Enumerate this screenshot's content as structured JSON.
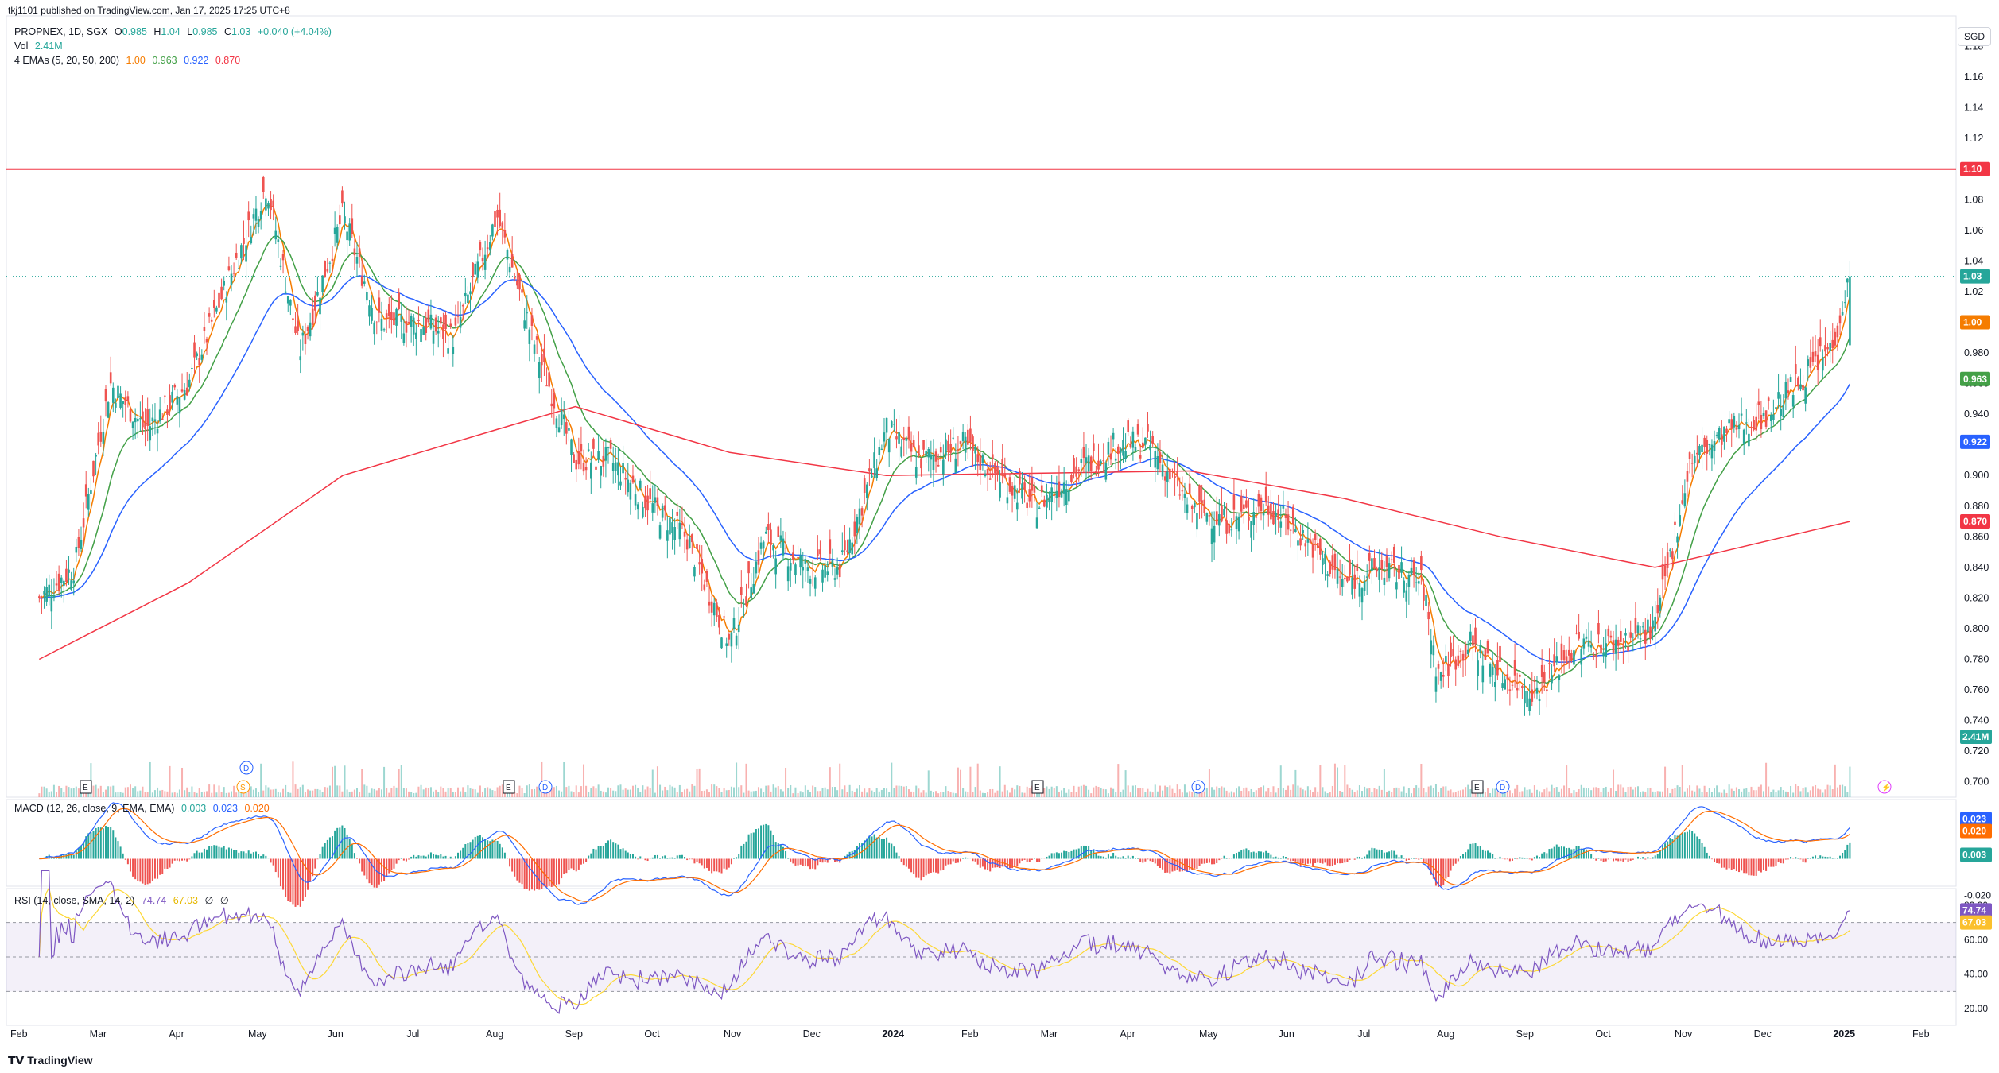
{
  "header": {
    "publisher": "tkj1101 published on TradingView.com, Jan 17, 2025 17:25 UTC+8"
  },
  "legend": {
    "symbol_line": "PROPNEX, 1D, SGX",
    "open_label": "O",
    "open": "0.985",
    "high_label": "H",
    "high": "1.04",
    "low_label": "L",
    "low": "0.985",
    "close_label": "C",
    "close": "1.03",
    "change": "+0.040 (+4.04%)",
    "vol_label": "Vol",
    "vol": "2.41M",
    "ema_label": "4 EMAs (5, 20, 50, 200)",
    "ema5": "1.00",
    "ema20": "0.963",
    "ema50": "0.922",
    "ema200": "0.870",
    "macd_label": "MACD (12, 26, close, 9, EMA, EMA)",
    "macd_hist": "0.003",
    "macd_line": "0.023",
    "macd_signal": "0.020",
    "rsi_label": "RSI (14, close, SMA, 14, 2)",
    "rsi": "74.74",
    "rsi_ma": "67.03",
    "rsi_na1": "∅",
    "rsi_na2": "∅"
  },
  "currency_button": "SGD",
  "footer": {
    "brand": "TradingView"
  },
  "colors": {
    "up": "#26a69a",
    "down": "#ef5350",
    "ema5": "#f57c00",
    "ema20": "#43a047",
    "ema50": "#2962ff",
    "ema200": "#f23645",
    "macd": "#2962ff",
    "signal": "#ff6d00",
    "rsi": "#7e57c2",
    "rsi_ma": "#fdd835",
    "hline": "#f23645"
  },
  "chart_data": {
    "type": "candlestick",
    "symbol": "PROPNEX",
    "exchange": "SGX",
    "interval": "1D",
    "currency": "SGD",
    "ohlc_last": {
      "open": 0.985,
      "high": 1.04,
      "low": 0.985,
      "close": 1.03
    },
    "horizontal_line": 1.1,
    "price_axis_ticks": [
      "0.700",
      "0.720",
      "0.740",
      "0.760",
      "0.780",
      "0.800",
      "0.820",
      "0.840",
      "0.860",
      "0.880",
      "0.900",
      "0.920",
      "0.940",
      "0.960",
      "0.980",
      "1.00",
      "1.02",
      "1.04",
      "1.06",
      "1.08",
      "1.10",
      "1.12",
      "1.14",
      "1.16",
      "1.18"
    ],
    "price_axis_range": [
      0.69,
      1.2
    ],
    "price_labels": {
      "hline": "1.10",
      "last": "1.03",
      "ema5": "1.00",
      "ema20": "0.963",
      "ema50": "0.922",
      "ema200": "0.870",
      "volume": "2.41M"
    },
    "time_axis": [
      "Feb",
      "Mar",
      "Apr",
      "May",
      "Jun",
      "Jul",
      "Aug",
      "Sep",
      "Oct",
      "Nov",
      "Dec",
      "2024",
      "Feb",
      "Mar",
      "Apr",
      "May",
      "Jun",
      "Jul",
      "Aug",
      "Sep",
      "Oct",
      "Nov",
      "Dec",
      "2025",
      "Feb"
    ],
    "close_path": [
      {
        "date": "2023-02-01",
        "close": 0.82
      },
      {
        "date": "2023-02-15",
        "close": 0.84
      },
      {
        "date": "2023-03-01",
        "close": 0.96
      },
      {
        "date": "2023-03-15",
        "close": 0.93
      },
      {
        "date": "2023-04-01",
        "close": 0.96
      },
      {
        "date": "2023-04-15",
        "close": 1.02
      },
      {
        "date": "2023-05-02",
        "close": 1.09
      },
      {
        "date": "2023-05-15",
        "close": 0.98
      },
      {
        "date": "2023-06-01",
        "close": 1.07
      },
      {
        "date": "2023-06-15",
        "close": 1.0
      },
      {
        "date": "2023-07-01",
        "close": 1.0
      },
      {
        "date": "2023-07-15",
        "close": 0.99
      },
      {
        "date": "2023-08-01",
        "close": 1.07
      },
      {
        "date": "2023-08-15",
        "close": 0.99
      },
      {
        "date": "2023-09-01",
        "close": 0.91
      },
      {
        "date": "2023-09-15",
        "close": 0.91
      },
      {
        "date": "2023-10-01",
        "close": 0.88
      },
      {
        "date": "2023-10-15",
        "close": 0.86
      },
      {
        "date": "2023-11-01",
        "close": 0.79
      },
      {
        "date": "2023-11-15",
        "close": 0.86
      },
      {
        "date": "2023-12-01",
        "close": 0.84
      },
      {
        "date": "2023-12-15",
        "close": 0.84
      },
      {
        "date": "2024-01-02",
        "close": 0.93
      },
      {
        "date": "2024-01-15",
        "close": 0.91
      },
      {
        "date": "2024-02-01",
        "close": 0.92
      },
      {
        "date": "2024-02-15",
        "close": 0.9
      },
      {
        "date": "2024-03-01",
        "close": 0.88
      },
      {
        "date": "2024-03-15",
        "close": 0.9
      },
      {
        "date": "2024-04-01",
        "close": 0.92
      },
      {
        "date": "2024-04-15",
        "close": 0.92
      },
      {
        "date": "2024-05-01",
        "close": 0.88
      },
      {
        "date": "2024-05-15",
        "close": 0.87
      },
      {
        "date": "2024-06-01",
        "close": 0.88
      },
      {
        "date": "2024-06-15",
        "close": 0.86
      },
      {
        "date": "2024-07-01",
        "close": 0.83
      },
      {
        "date": "2024-07-15",
        "close": 0.84
      },
      {
        "date": "2024-08-01",
        "close": 0.83
      },
      {
        "date": "2024-08-07",
        "close": 0.77
      },
      {
        "date": "2024-08-20",
        "close": 0.79
      },
      {
        "date": "2024-09-01",
        "close": 0.77
      },
      {
        "date": "2024-09-15",
        "close": 0.76
      },
      {
        "date": "2024-10-01",
        "close": 0.79
      },
      {
        "date": "2024-10-15",
        "close": 0.79
      },
      {
        "date": "2024-11-01",
        "close": 0.8
      },
      {
        "date": "2024-11-15",
        "close": 0.91
      },
      {
        "date": "2024-12-01",
        "close": 0.93
      },
      {
        "date": "2024-12-15",
        "close": 0.94
      },
      {
        "date": "2025-01-02",
        "close": 0.97
      },
      {
        "date": "2025-01-10",
        "close": 0.985
      },
      {
        "date": "2025-01-17",
        "close": 1.03
      }
    ],
    "ema200_path": [
      {
        "date": "2023-02-01",
        "value": 0.78
      },
      {
        "date": "2023-04-01",
        "value": 0.83
      },
      {
        "date": "2023-06-01",
        "value": 0.9
      },
      {
        "date": "2023-08-01",
        "value": 0.93
      },
      {
        "date": "2023-09-01",
        "value": 0.945
      },
      {
        "date": "2023-11-01",
        "value": 0.915
      },
      {
        "date": "2024-01-02",
        "value": 0.9
      },
      {
        "date": "2024-05-01",
        "value": 0.903
      },
      {
        "date": "2024-07-01",
        "value": 0.885
      },
      {
        "date": "2024-09-01",
        "value": 0.86
      },
      {
        "date": "2024-11-01",
        "value": 0.84
      },
      {
        "date": "2025-01-17",
        "value": 0.87
      }
    ],
    "macd_axis_ticks": [
      "0.020",
      "0.000",
      "-0.020"
    ],
    "macd_labels": {
      "macd": "0.023",
      "signal": "0.020",
      "hist": "0.003"
    },
    "rsi_axis_ticks": [
      "80.00",
      "60.00",
      "40.00",
      "20.00"
    ],
    "rsi_labels": {
      "rsi": "74.74",
      "ma": "67.03"
    },
    "rsi_bands": [
      30,
      70
    ],
    "event_markers": [
      "E",
      "D",
      "S",
      "E",
      "D",
      "E",
      "D",
      "E",
      "D",
      "⚡"
    ]
  }
}
